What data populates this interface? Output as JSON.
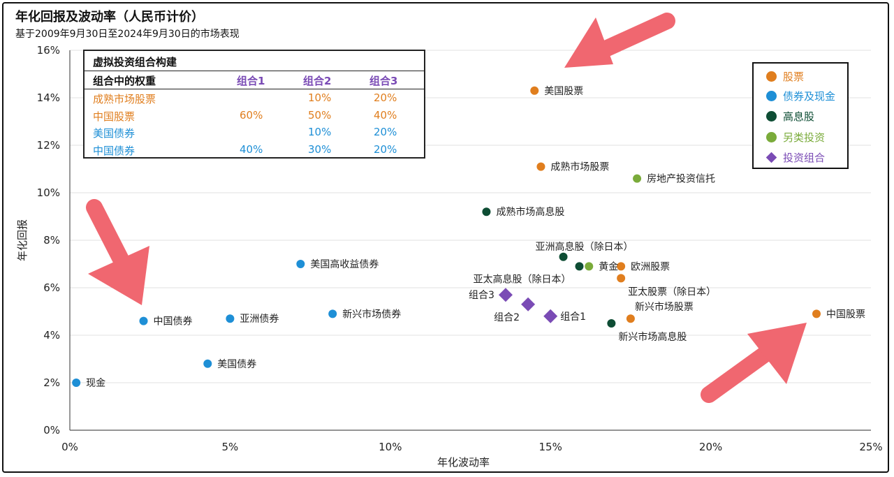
{
  "header": {
    "title": "年化回报及波动率（人民币计价）",
    "subtitle": "基于2009年9月30日至2024年9月30日的市场表现"
  },
  "colors": {
    "stock": "#E07E1E",
    "bond": "#1E8FD6",
    "dividend": "#0E4D34",
    "alternative": "#7AAB3A",
    "portfolio": "#7A4BB5",
    "arrow": "#F06770"
  },
  "portfolio_table": {
    "title": "虚拟投资组合构建",
    "header": [
      "组合中的权重",
      "组合1",
      "组合2",
      "组合3"
    ],
    "rows": [
      {
        "label": "成熟市场股票",
        "cat": "stock",
        "w1": "",
        "w2": "10%",
        "w3": "20%"
      },
      {
        "label": "中国股票",
        "cat": "stock",
        "w1": "60%",
        "w2": "50%",
        "w3": "40%"
      },
      {
        "label": "美国债券",
        "cat": "bond",
        "w1": "",
        "w2": "10%",
        "w3": "20%"
      },
      {
        "label": "中国债券",
        "cat": "bond",
        "w1": "40%",
        "w2": "30%",
        "w3": "20%"
      }
    ]
  },
  "legend": {
    "items": [
      {
        "label": "股票",
        "cat": "stock",
        "marker": "circle"
      },
      {
        "label": "债券及现金",
        "cat": "bond",
        "marker": "circle"
      },
      {
        "label": "高息股",
        "cat": "dividend",
        "marker": "circle"
      },
      {
        "label": "另类投资",
        "cat": "alternative",
        "marker": "circle"
      },
      {
        "label": "投资组合",
        "cat": "portfolio",
        "marker": "diamond"
      }
    ]
  },
  "chart_data": {
    "type": "scatter",
    "xlabel": "年化波动率",
    "ylabel": "年化回报",
    "xlim": [
      0,
      25
    ],
    "ylim": [
      0,
      16
    ],
    "x_ticks": [
      "0%",
      "5%",
      "10%",
      "15%",
      "20%",
      "25%"
    ],
    "y_ticks": [
      "0%",
      "2%",
      "4%",
      "6%",
      "8%",
      "10%",
      "12%",
      "14%",
      "16%"
    ],
    "grid": "horizontal",
    "legend_position": "top-right",
    "points": [
      {
        "label": "美国股票",
        "x": 14.5,
        "y": 14.3,
        "cat": "stock",
        "anchor": "right"
      },
      {
        "label": "成熟市场股票",
        "x": 14.7,
        "y": 11.1,
        "cat": "stock",
        "anchor": "right"
      },
      {
        "label": "欧洲股票",
        "x": 17.2,
        "y": 6.9,
        "cat": "stock",
        "anchor": "right"
      },
      {
        "label": "亚太股票（除日本）",
        "x": 17.2,
        "y": 6.4,
        "cat": "stock",
        "anchor": "below-right"
      },
      {
        "label": "新兴市场股票",
        "x": 17.5,
        "y": 4.7,
        "cat": "stock",
        "anchor": "above-right"
      },
      {
        "label": "中国股票",
        "x": 23.3,
        "y": 4.9,
        "cat": "stock",
        "anchor": "right"
      },
      {
        "label": "现金",
        "x": 0.2,
        "y": 2.0,
        "cat": "bond",
        "anchor": "right"
      },
      {
        "label": "中国债券",
        "x": 2.3,
        "y": 4.6,
        "cat": "bond",
        "anchor": "right"
      },
      {
        "label": "美国债券",
        "x": 4.3,
        "y": 2.8,
        "cat": "bond",
        "anchor": "right"
      },
      {
        "label": "亚洲债券",
        "x": 5.0,
        "y": 4.7,
        "cat": "bond",
        "anchor": "right"
      },
      {
        "label": "美国高收益债券",
        "x": 7.2,
        "y": 7.0,
        "cat": "bond",
        "anchor": "right"
      },
      {
        "label": "新兴市场债券",
        "x": 8.2,
        "y": 4.9,
        "cat": "bond",
        "anchor": "right"
      },
      {
        "label": "成熟市场高息股",
        "x": 13.0,
        "y": 9.2,
        "cat": "dividend",
        "anchor": "right"
      },
      {
        "label": "亚洲高息股（除日本）",
        "x": 15.4,
        "y": 7.3,
        "cat": "dividend",
        "anchor": "above"
      },
      {
        "label": "亚太高息股（除日本）",
        "x": 15.9,
        "y": 6.9,
        "cat": "dividend",
        "anchor": "below-left"
      },
      {
        "label": "新兴市场高息股",
        "x": 16.9,
        "y": 4.5,
        "cat": "dividend",
        "anchor": "below-right"
      },
      {
        "label": "黄金",
        "x": 16.2,
        "y": 6.9,
        "cat": "alternative",
        "anchor": "right"
      },
      {
        "label": "房地产投资信托",
        "x": 17.7,
        "y": 10.6,
        "cat": "alternative",
        "anchor": "right"
      },
      {
        "label": "组合3",
        "x": 13.6,
        "y": 5.7,
        "cat": "portfolio",
        "anchor": "left"
      },
      {
        "label": "组合2",
        "x": 14.3,
        "y": 5.3,
        "cat": "portfolio",
        "anchor": "below-left"
      },
      {
        "label": "组合1",
        "x": 15.0,
        "y": 4.8,
        "cat": "portfolio",
        "anchor": "right"
      }
    ]
  }
}
